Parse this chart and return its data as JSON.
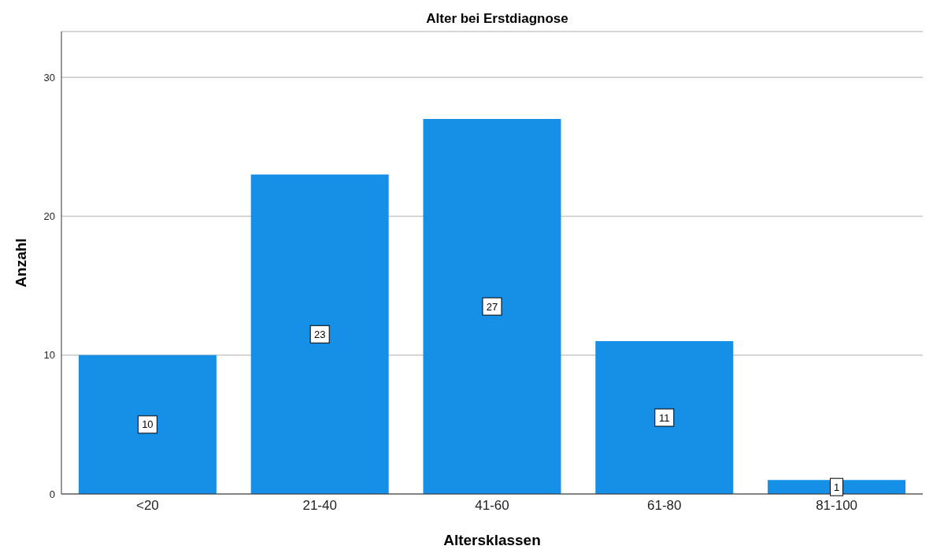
{
  "chart_data": {
    "type": "bar",
    "title": "Alter bei Erstdiagnose",
    "xlabel": "Altersklassen",
    "ylabel": "Anzahl",
    "categories": [
      "<20",
      "21-40",
      "41-60",
      "61-80",
      "81-100"
    ],
    "values": [
      10,
      23,
      27,
      11,
      1
    ],
    "color": "#1590e6",
    "ylim": [
      0,
      33.3
    ],
    "yticks": [
      0,
      10,
      20,
      30
    ],
    "grid": "y",
    "data_labels": true
  }
}
